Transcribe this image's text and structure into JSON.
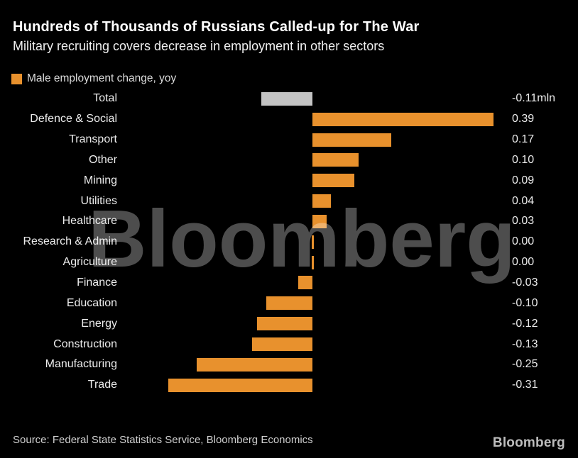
{
  "header": {
    "title": "Hundreds of Thousands of Russians Called-up for The War",
    "subtitle": "Military recruiting covers decrease in employment in other sectors"
  },
  "legend": {
    "label": "Male employment change, yoy",
    "swatch_color": "#E8912D"
  },
  "chart_data": {
    "type": "bar",
    "orientation": "horizontal",
    "title": "Hundreds of Thousands of Russians Called-up for The War",
    "subtitle": "Military recruiting covers decrease in employment in other sectors",
    "series_name": "Male employment change, yoy",
    "unit": "mln",
    "categories": [
      "Total",
      "Defence & Social",
      "Transport",
      "Other",
      "Mining",
      "Utilities",
      "Healthcare",
      "Research & Admin",
      "Agriculture",
      "Finance",
      "Education",
      "Energy",
      "Construction",
      "Manufacturing",
      "Trade"
    ],
    "values": [
      -0.11,
      0.39,
      0.17,
      0.1,
      0.09,
      0.04,
      0.03,
      0.0,
      0.0,
      -0.03,
      -0.1,
      -0.12,
      -0.13,
      -0.25,
      -0.31
    ],
    "value_labels": [
      "-0.11mln",
      "0.39",
      "0.17",
      "0.10",
      "0.09",
      "0.04",
      "0.03",
      "0.00",
      "0.00",
      "-0.03",
      "-0.10",
      "-0.12",
      "-0.13",
      "-0.25",
      "-0.31"
    ],
    "bar_colors": [
      "#C3C3C3",
      "#E8912D",
      "#E8912D",
      "#E8912D",
      "#E8912D",
      "#E8912D",
      "#E8912D",
      "#E8912D",
      "#E8912D",
      "#E8912D",
      "#E8912D",
      "#E8912D",
      "#E8912D",
      "#E8912D",
      "#E8912D"
    ],
    "xlim": [
      -0.42,
      0.43
    ],
    "grid": false,
    "legend_position": "top-left",
    "zero_axis": true
  },
  "watermark": {
    "text": "Bloomberg"
  },
  "footer": {
    "source": "Source: Federal State Statistics Service, Bloomberg Economics",
    "logo_label": "Bloomberg"
  }
}
